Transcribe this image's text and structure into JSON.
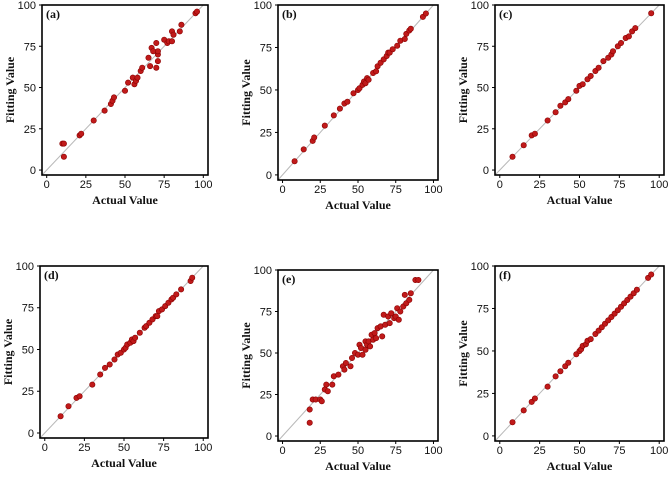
{
  "figure": {
    "accent_color": "#c01a1a",
    "reference_line_color": "#b8b8b8"
  },
  "chart_data": [
    {
      "type": "scatter",
      "panel_label": "(a)",
      "xlabel": "Actual Value",
      "ylabel": "Fitting Value",
      "xlim": [
        -3,
        103
      ],
      "ylim": [
        -3,
        100
      ],
      "xticks": [
        "0",
        "25",
        "50",
        "75",
        "100"
      ],
      "yticks": [
        "0",
        "25",
        "50",
        "75",
        "100"
      ],
      "x": [
        10,
        11,
        11,
        21,
        22,
        30,
        37,
        41,
        42,
        43,
        50,
        52,
        55,
        56,
        57,
        58,
        60,
        61,
        65,
        66,
        67,
        68,
        70,
        70,
        71,
        71,
        71,
        75,
        77,
        78,
        80,
        80,
        81,
        85,
        86,
        95,
        96
      ],
      "y": [
        16,
        16,
        8,
        21,
        22,
        30,
        36,
        40,
        42,
        44,
        48,
        53,
        56,
        52,
        54,
        56,
        60,
        62,
        68,
        63,
        74,
        72,
        77,
        62,
        70,
        72,
        66,
        79,
        77,
        78,
        78,
        84,
        82,
        84,
        88,
        95,
        96
      ]
    },
    {
      "type": "scatter",
      "panel_label": "(b)",
      "xlabel": "Actual Value",
      "ylabel": "Fitting Value",
      "xlim": [
        -3,
        103
      ],
      "ylim": [
        -3,
        100
      ],
      "xticks": [
        "0",
        "25",
        "50",
        "75",
        "100"
      ],
      "yticks": [
        "0",
        "25",
        "50",
        "75",
        "100"
      ],
      "x": [
        8,
        14,
        20,
        21,
        28,
        34,
        38,
        41,
        43,
        47,
        50,
        51,
        53,
        54,
        55,
        56,
        57,
        60,
        62,
        63,
        65,
        67,
        69,
        70,
        71,
        73,
        76,
        78,
        81,
        82,
        84,
        85,
        93,
        95
      ],
      "y": [
        8,
        15,
        20,
        22,
        29,
        35,
        39,
        42,
        43,
        48,
        50,
        51,
        53,
        55,
        54,
        57,
        56,
        60,
        61,
        64,
        66,
        68,
        70,
        72,
        72,
        74,
        76,
        79,
        80,
        83,
        85,
        86,
        93,
        95
      ]
    },
    {
      "type": "scatter",
      "panel_label": "(c)",
      "xlabel": "Actual Value",
      "ylabel": "Fitting Value",
      "xlim": [
        -3,
        103
      ],
      "ylim": [
        -3,
        100
      ],
      "xticks": [
        "0",
        "25",
        "50",
        "75",
        "100"
      ],
      "yticks": [
        "0",
        "25",
        "50",
        "75",
        "100"
      ],
      "x": [
        8,
        15,
        20,
        22,
        30,
        35,
        38,
        41,
        43,
        48,
        50,
        52,
        55,
        57,
        60,
        62,
        65,
        68,
        70,
        71,
        74,
        76,
        79,
        81,
        83,
        85,
        95
      ],
      "y": [
        8,
        15,
        21,
        22,
        30,
        35,
        39,
        41,
        43,
        48,
        51,
        52,
        55,
        57,
        60,
        62,
        66,
        68,
        70,
        72,
        75,
        77,
        80,
        81,
        84,
        86,
        95
      ]
    },
    {
      "type": "scatter",
      "panel_label": "(d)",
      "xlabel": "Actual Value",
      "ylabel": "Fitting Value",
      "xlim": [
        -3,
        103
      ],
      "ylim": [
        -3,
        100
      ],
      "xticks": [
        "0",
        "25",
        "50",
        "75",
        "100"
      ],
      "yticks": [
        "0",
        "25",
        "50",
        "75",
        "100"
      ],
      "x": [
        10,
        15,
        20,
        22,
        30,
        35,
        38,
        41,
        44,
        46,
        48,
        50,
        51,
        52,
        54,
        55,
        56,
        57,
        60,
        63,
        64,
        66,
        68,
        70,
        71,
        72,
        74,
        76,
        78,
        80,
        81,
        83,
        86,
        92,
        93
      ],
      "y": [
        10,
        16,
        21,
        22,
        29,
        35,
        39,
        41,
        44,
        47,
        48,
        50,
        51,
        53,
        54,
        56,
        55,
        57,
        60,
        63,
        64,
        66,
        68,
        70,
        70,
        73,
        74,
        76,
        78,
        80,
        81,
        83,
        86,
        91,
        93
      ]
    },
    {
      "type": "scatter",
      "panel_label": "(e)",
      "xlabel": "Actual Value",
      "ylabel": "Fitting Value",
      "xlim": [
        -3,
        103
      ],
      "ylim": [
        -3,
        100
      ],
      "xticks": [
        "0",
        "25",
        "50",
        "75",
        "100"
      ],
      "yticks": [
        "0",
        "25",
        "50",
        "75",
        "100"
      ],
      "x": [
        18,
        18,
        20,
        22,
        25,
        26,
        28,
        29,
        30,
        33,
        34,
        37,
        40,
        41,
        42,
        45,
        46,
        48,
        50,
        51,
        52,
        53,
        55,
        55,
        56,
        57,
        58,
        59,
        60,
        61,
        62,
        63,
        65,
        66,
        67,
        68,
        70,
        71,
        72,
        74,
        75,
        76,
        77,
        78,
        80,
        81,
        82,
        84,
        85,
        88,
        90
      ],
      "y": [
        16,
        8,
        22,
        22,
        22,
        21,
        28,
        31,
        27,
        31,
        36,
        37,
        42,
        40,
        44,
        42,
        47,
        50,
        49,
        55,
        53,
        49,
        57,
        52,
        55,
        57,
        54,
        61,
        58,
        62,
        59,
        65,
        66,
        60,
        73,
        67,
        72,
        68,
        74,
        71,
        72,
        77,
        70,
        75,
        78,
        85,
        80,
        82,
        86,
        94,
        94
      ]
    },
    {
      "type": "scatter",
      "panel_label": "(f)",
      "xlabel": "Actual Value",
      "ylabel": "Fitting Value",
      "xlim": [
        -3,
        103
      ],
      "ylim": [
        -3,
        100
      ],
      "xticks": [
        "0",
        "25",
        "50",
        "75",
        "100"
      ],
      "yticks": [
        "0",
        "25",
        "50",
        "75",
        "100"
      ],
      "x": [
        8,
        15,
        20,
        22,
        30,
        35,
        38,
        41,
        43,
        48,
        50,
        51,
        52,
        54,
        55,
        57,
        60,
        62,
        64,
        66,
        68,
        70,
        72,
        74,
        76,
        78,
        80,
        82,
        84,
        86,
        93,
        95
      ],
      "y": [
        8,
        15,
        20,
        22,
        29,
        35,
        38,
        41,
        43,
        48,
        50,
        51,
        53,
        54,
        56,
        57,
        60,
        62,
        64,
        66,
        68,
        70,
        72,
        74,
        76,
        78,
        80,
        82,
        84,
        86,
        93,
        95
      ]
    }
  ]
}
